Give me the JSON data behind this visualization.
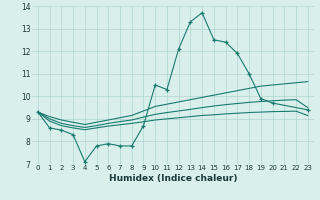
{
  "x_values": [
    0,
    1,
    2,
    3,
    4,
    5,
    6,
    7,
    8,
    9,
    10,
    11,
    12,
    13,
    14,
    15,
    16,
    17,
    18,
    19,
    20,
    21,
    22,
    23
  ],
  "line_main": [
    9.3,
    8.6,
    8.5,
    8.3,
    7.1,
    7.8,
    7.9,
    7.8,
    7.8,
    8.7,
    10.5,
    10.3,
    12.1,
    13.3,
    13.7,
    12.5,
    12.4,
    11.9,
    11.0,
    9.9,
    9.7,
    null,
    null,
    9.4
  ],
  "line_upper": [
    9.3,
    9.1,
    8.95,
    8.85,
    8.75,
    8.85,
    8.95,
    9.05,
    9.15,
    9.35,
    9.55,
    9.65,
    9.75,
    9.85,
    9.95,
    10.05,
    10.15,
    10.25,
    10.35,
    10.45,
    10.5,
    10.55,
    10.6,
    10.65
  ],
  "line_mid": [
    9.3,
    9.0,
    8.8,
    8.7,
    8.62,
    8.7,
    8.8,
    8.88,
    8.95,
    9.08,
    9.2,
    9.28,
    9.35,
    9.42,
    9.5,
    9.57,
    9.63,
    9.68,
    9.73,
    9.77,
    9.8,
    9.83,
    9.85,
    9.5
  ],
  "line_lower": [
    9.3,
    8.9,
    8.7,
    8.6,
    8.52,
    8.6,
    8.68,
    8.74,
    8.8,
    8.87,
    8.95,
    9.0,
    9.05,
    9.1,
    9.15,
    9.18,
    9.22,
    9.25,
    9.28,
    9.3,
    9.32,
    9.33,
    9.34,
    9.15
  ],
  "xlabel": "Humidex (Indice chaleur)",
  "ylim": [
    7,
    14
  ],
  "xlim": [
    -0.5,
    23.5
  ],
  "yticks": [
    7,
    8,
    9,
    10,
    11,
    12,
    13,
    14
  ],
  "xticks": [
    0,
    1,
    2,
    3,
    4,
    5,
    6,
    7,
    8,
    9,
    10,
    11,
    12,
    13,
    14,
    15,
    16,
    17,
    18,
    19,
    20,
    21,
    22,
    23
  ],
  "line_color": "#1a7a6e",
  "bg_color": "#d8efec",
  "grid_color": "#afd4d0"
}
